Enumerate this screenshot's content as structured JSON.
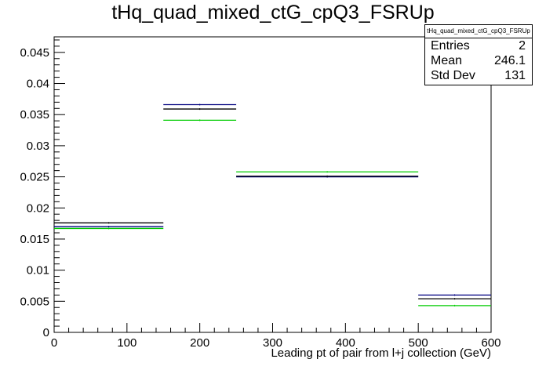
{
  "chart_data": {
    "type": "histogram",
    "title": "tHq_quad_mixed_ctG_cpQ3_FSRUp",
    "xlabel": "Leading pt of pair from l+j collection (GeV)",
    "ylabel": "",
    "xlim": [
      0,
      600
    ],
    "ylim": [
      0,
      0.0475
    ],
    "x_ticks": [
      "0",
      "100",
      "200",
      "300",
      "400",
      "500",
      "600"
    ],
    "y_ticks": [
      "0",
      "0.005",
      "0.01",
      "0.015",
      "0.02",
      "0.025",
      "0.03",
      "0.035",
      "0.04",
      "0.045"
    ],
    "bin_edges": [
      0,
      150,
      250,
      500,
      600
    ],
    "series": [
      {
        "color": "#000080",
        "values": [
          0.017,
          0.0366,
          0.025,
          0.006
        ]
      },
      {
        "color": "#000000",
        "values": [
          0.0176,
          0.0359,
          0.0251,
          0.0054
        ]
      },
      {
        "color": "#00cc00",
        "values": [
          0.0167,
          0.0341,
          0.0258,
          0.0043
        ]
      }
    ],
    "stats": {
      "name": "tHq_quad_mixed_ctG_cpQ3_FSRUp",
      "rows": [
        {
          "label": "Entries",
          "value": "2"
        },
        {
          "label": "Mean",
          "value": "246.1"
        },
        {
          "label": "Std Dev",
          "value": "131"
        }
      ]
    },
    "grid": false,
    "legend": "none"
  }
}
